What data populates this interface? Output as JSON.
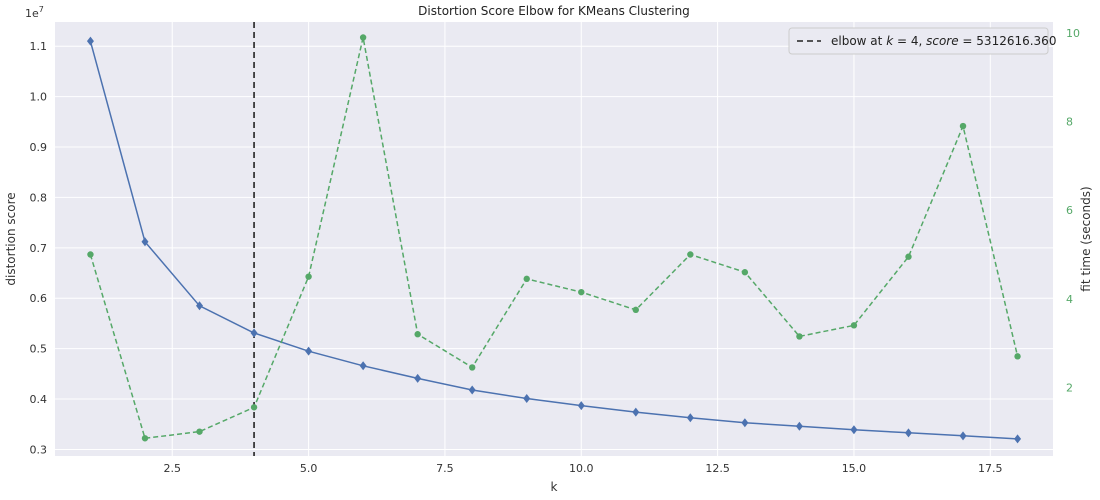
{
  "chart_data": {
    "type": "line",
    "title": "Distortion Score Elbow for KMeans Clustering",
    "xlabel": "k",
    "ylabel": "distortion score",
    "y2label": "fit time (seconds)",
    "y_offset_label": "1e7",
    "xlim": [
      0.35,
      18.65
    ],
    "ylim": [
      2.87,
      11.48
    ],
    "y2lim": [
      0.45,
      10.25
    ],
    "x_ticks": [
      2.5,
      5.0,
      7.5,
      10.0,
      12.5,
      15.0,
      17.5
    ],
    "x_tick_labels": [
      "2.5",
      "5.0",
      "7.5",
      "10.0",
      "12.5",
      "15.0",
      "17.5"
    ],
    "y_ticks": [
      3,
      4,
      5,
      6,
      7,
      8,
      9,
      10,
      11
    ],
    "y_tick_labels": [
      "0.3",
      "0.4",
      "0.5",
      "0.6",
      "0.7",
      "0.8",
      "0.9",
      "1.0",
      "1.1"
    ],
    "y2_ticks": [
      2,
      4,
      6,
      8,
      10
    ],
    "y2_tick_labels": [
      "2",
      "4",
      "6",
      "8",
      "10"
    ],
    "grid": true,
    "legend_position": "top-right",
    "x": [
      1,
      2,
      3,
      4,
      5,
      6,
      7,
      8,
      9,
      10,
      11,
      12,
      13,
      14,
      15,
      16,
      17,
      18
    ],
    "series": [
      {
        "axis": "left",
        "values": [
          11.1,
          7.12,
          5.85,
          5.31,
          4.95,
          4.66,
          4.41,
          4.18,
          4.01,
          3.87,
          3.74,
          3.63,
          3.53,
          3.46,
          3.39,
          3.33,
          3.27,
          3.21
        ],
        "color": "#4c72b0",
        "style": "solid",
        "marker": "diamond"
      },
      {
        "axis": "right",
        "values": [
          5.0,
          0.85,
          1.0,
          1.55,
          4.5,
          9.9,
          3.2,
          2.45,
          4.45,
          4.15,
          3.75,
          5.0,
          4.6,
          3.15,
          3.4,
          4.95,
          7.9,
          2.7
        ],
        "color": "#55a868",
        "style": "dashed",
        "marker": "circle"
      }
    ],
    "elbow": {
      "x": 4,
      "legend_label_prefix": "elbow at ",
      "legend_label_k": "k",
      "legend_label_mid": " = 4, ",
      "legend_label_score": "score",
      "legend_label_suffix": " = 5312616.360",
      "color": "#222222"
    },
    "colors": {
      "plot_background": "#eaeaf2",
      "grid": "#ffffff",
      "primary": "#4c72b0",
      "secondary": "#55a868"
    }
  }
}
